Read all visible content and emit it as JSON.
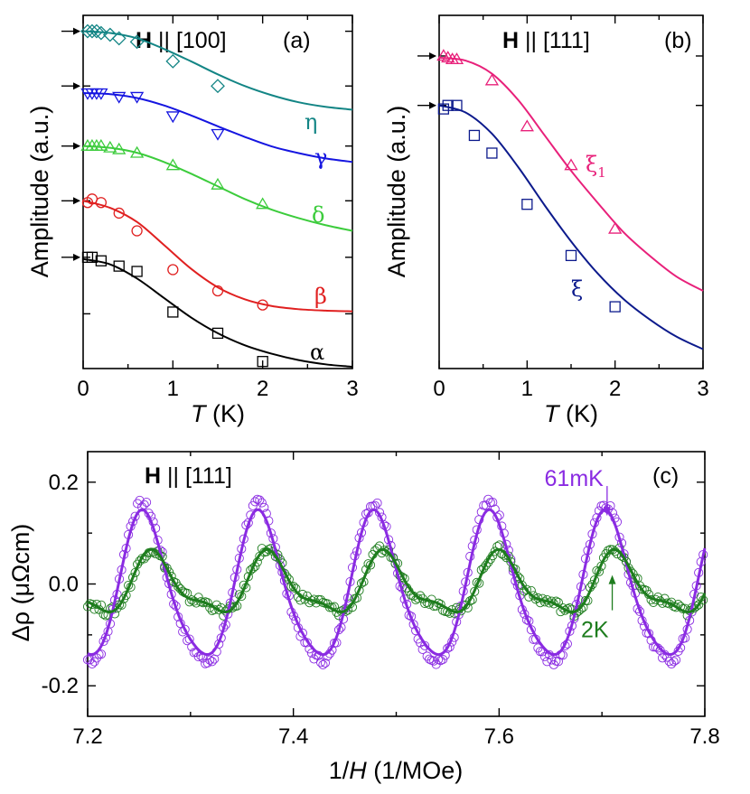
{
  "chart_data": [
    {
      "panel": "(a)",
      "type": "line",
      "title_bold": "H",
      "title_rest": " || [100]",
      "xlabel_italic": "T",
      "xlabel_rest": " (K)",
      "ylabel": "Amplitude (a.u.)",
      "xlim": [
        0,
        3
      ],
      "ylim": [
        0,
        1
      ],
      "xticks": [
        "0",
        "1",
        "2",
        "3"
      ],
      "grid": false,
      "series": [
        {
          "name": "η",
          "color": "#138585",
          "marker": "diamond",
          "x": [
            0.05,
            0.1,
            0.15,
            0.2,
            0.3,
            0.4,
            0.6,
            1.0,
            1.5
          ],
          "y": [
            0.955,
            0.955,
            0.955,
            0.95,
            0.945,
            0.935,
            0.925,
            0.87,
            0.8
          ],
          "fit_x": [
            0,
            0.3,
            0.6,
            0.9,
            1.2,
            1.5,
            1.8,
            2.1,
            2.4,
            2.7,
            3.0
          ],
          "fit_y": [
            0.955,
            0.95,
            0.935,
            0.905,
            0.87,
            0.833,
            0.8,
            0.774,
            0.754,
            0.741,
            0.733
          ]
        },
        {
          "name": "γ",
          "color": "#1515e0",
          "marker": "triangle-down",
          "x": [
            0.05,
            0.1,
            0.15,
            0.2,
            0.4,
            0.6,
            1.0,
            1.5
          ],
          "y": [
            0.78,
            0.78,
            0.78,
            0.78,
            0.77,
            0.77,
            0.715,
            0.665
          ],
          "fit_x": [
            0,
            0.3,
            0.6,
            0.9,
            1.2,
            1.5,
            1.8,
            2.1,
            2.4,
            2.7,
            3.0
          ],
          "fit_y": [
            0.78,
            0.777,
            0.766,
            0.745,
            0.717,
            0.686,
            0.656,
            0.629,
            0.61,
            0.595,
            0.585
          ]
        },
        {
          "name": "δ",
          "color": "#3ccc3c",
          "marker": "triangle-up",
          "x": [
            0.05,
            0.1,
            0.15,
            0.2,
            0.3,
            0.4,
            0.6,
            1.0,
            1.5,
            2.0
          ],
          "y": [
            0.63,
            0.63,
            0.63,
            0.63,
            0.625,
            0.62,
            0.61,
            0.575,
            0.52,
            0.465
          ],
          "fit_x": [
            0,
            0.3,
            0.6,
            0.9,
            1.2,
            1.5,
            1.8,
            2.1,
            2.4,
            2.7,
            3.0
          ],
          "fit_y": [
            0.63,
            0.625,
            0.611,
            0.585,
            0.552,
            0.516,
            0.48,
            0.45,
            0.426,
            0.406,
            0.39
          ]
        },
        {
          "name": "β",
          "color": "#e02020",
          "marker": "circle",
          "x": [
            0.05,
            0.1,
            0.2,
            0.4,
            0.6,
            1.0,
            1.5,
            2.0
          ],
          "y": [
            0.47,
            0.48,
            0.47,
            0.44,
            0.39,
            0.28,
            0.22,
            0.18
          ],
          "fit_x": [
            0,
            0.3,
            0.6,
            0.9,
            1.2,
            1.5,
            1.8,
            2.1,
            2.4,
            2.7,
            3.0
          ],
          "fit_y": [
            0.475,
            0.455,
            0.415,
            0.35,
            0.283,
            0.23,
            0.196,
            0.177,
            0.168,
            0.164,
            0.162
          ]
        },
        {
          "name": "α",
          "color": "#000000",
          "marker": "square",
          "x": [
            0.05,
            0.1,
            0.2,
            0.4,
            0.6,
            1.0,
            1.5,
            2.0
          ],
          "y": [
            0.315,
            0.315,
            0.305,
            0.29,
            0.275,
            0.16,
            0.1,
            0.02
          ],
          "fit_x": [
            0,
            0.3,
            0.6,
            0.9,
            1.2,
            1.5,
            1.8,
            2.1,
            2.4,
            2.7,
            3.0
          ],
          "fit_y": [
            0.31,
            0.295,
            0.255,
            0.2,
            0.145,
            0.1,
            0.066,
            0.042,
            0.024,
            0.012,
            0.005
          ]
        }
      ],
      "arrows_y": [
        0.955,
        0.8,
        0.63,
        0.475,
        0.315
      ],
      "extra_yticks": [
        0.155
      ]
    },
    {
      "panel": "(b)",
      "type": "line",
      "title_bold": "H",
      "title_rest": " || [111]",
      "xlabel_italic": "T",
      "xlabel_rest": " (K)",
      "ylabel": "Amplitude (a.u.)",
      "xlim": [
        0,
        3
      ],
      "ylim": [
        0,
        1
      ],
      "xticks": [
        "0",
        "1",
        "2",
        "3"
      ],
      "grid": false,
      "series": [
        {
          "name": "ξ",
          "sub": "1",
          "color": "#e8207a",
          "marker": "triangle-up",
          "x": [
            0.05,
            0.1,
            0.15,
            0.2,
            0.6,
            1.0,
            1.5,
            2.0
          ],
          "y": [
            0.885,
            0.88,
            0.875,
            0.875,
            0.815,
            0.685,
            0.575,
            0.395
          ],
          "fit_x": [
            0,
            0.3,
            0.6,
            0.9,
            1.2,
            1.5,
            1.8,
            2.1,
            2.4,
            2.7,
            3.0
          ],
          "fit_y": [
            0.88,
            0.872,
            0.835,
            0.76,
            0.66,
            0.56,
            0.47,
            0.385,
            0.318,
            0.26,
            0.22
          ]
        },
        {
          "name": "ξ",
          "sub": "",
          "color": "#0c1a8c",
          "marker": "square",
          "x": [
            0.05,
            0.1,
            0.2,
            0.4,
            0.6,
            1.0,
            1.5,
            2.0
          ],
          "y": [
            0.735,
            0.745,
            0.745,
            0.66,
            0.61,
            0.465,
            0.32,
            0.175
          ],
          "fit_x": [
            0,
            0.3,
            0.6,
            0.9,
            1.2,
            1.5,
            1.8,
            2.1,
            2.4,
            2.7,
            3.0
          ],
          "fit_y": [
            0.745,
            0.725,
            0.665,
            0.57,
            0.462,
            0.36,
            0.27,
            0.196,
            0.138,
            0.09,
            0.055
          ]
        }
      ],
      "arrows_y": [
        0.885,
        0.745
      ]
    },
    {
      "panel": "(c)",
      "type": "line",
      "title_bold": "H",
      "title_rest": " || [111]",
      "xlabel_italic": "",
      "xlabel_pre": "1/",
      "xlabel_it": "H",
      "xlabel_post": " (1/MOe)",
      "ylabel": "Δρ (μΩcm)",
      "xlim": [
        7.2,
        7.8
      ],
      "ylim": [
        -0.26,
        0.26
      ],
      "xticks": [
        7.2,
        7.4,
        7.6,
        7.8
      ],
      "xtick_labels": [
        "7.2",
        "7.4",
        "7.6",
        "7.8"
      ],
      "yticks": [
        -0.2,
        0.0,
        0.2
      ],
      "ytick_labels": [
        "-0.2",
        "0.0",
        "0.2"
      ],
      "grid": false,
      "series": [
        {
          "name": "61mK",
          "color": "#8a2be2",
          "period": 0.1125,
          "amplitude": 0.14,
          "peak_x": 7.255,
          "peak_y": 0.13,
          "trough_y": -0.155,
          "harmonic": 0.15
        },
        {
          "name": "2K",
          "color": "#1e7d1e",
          "period": 0.1125,
          "amplitude": 0.055,
          "peak_x": 7.265,
          "peak_y": 0.05,
          "trough_y": -0.06,
          "harmonic": 0.35
        }
      ],
      "annotations": [
        {
          "text": "61mK",
          "x": 7.705,
          "y": 0.125,
          "direction": "down"
        },
        {
          "text": "2K",
          "x": 7.71,
          "y": 0.03,
          "direction": "up"
        }
      ]
    }
  ]
}
